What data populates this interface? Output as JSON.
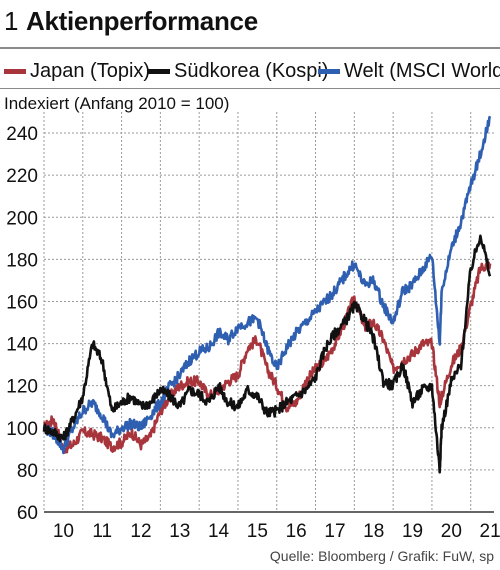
{
  "header": {
    "figure_number": "1",
    "title": "Aktienperformance"
  },
  "legend": [
    {
      "label": "Japan (Topix)",
      "color": "#a8343c"
    },
    {
      "label": "Südkorea (Kospi)",
      "color": "#111111"
    },
    {
      "label": "Welt (MSCI World)",
      "color": "#2f5fb0"
    }
  ],
  "subtitle": "Indexiert (Anfang 2010 = 100)",
  "source": "Quelle: Bloomberg / Grafik: FuW, sp",
  "chart_data": {
    "type": "line",
    "title": "Aktienperformance",
    "ylabel": "Indexiert (Anfang 2010 = 100)",
    "xlabel": "",
    "ylim": [
      60,
      250
    ],
    "yticks": [
      60,
      80,
      100,
      120,
      140,
      160,
      180,
      200,
      220,
      240
    ],
    "xlim": [
      2010,
      2021.6
    ],
    "xtick_labels": [
      "10",
      "11",
      "12",
      "13",
      "14",
      "15",
      "16",
      "17",
      "18",
      "19",
      "20",
      "21"
    ],
    "grid": true,
    "legend_position": "top",
    "x": [
      2010.0,
      2010.25,
      2010.5,
      2010.75,
      2011.0,
      2011.25,
      2011.5,
      2011.75,
      2012.0,
      2012.25,
      2012.5,
      2012.75,
      2013.0,
      2013.25,
      2013.5,
      2013.75,
      2014.0,
      2014.25,
      2014.5,
      2014.75,
      2015.0,
      2015.25,
      2015.5,
      2015.75,
      2016.0,
      2016.25,
      2016.5,
      2016.75,
      2017.0,
      2017.25,
      2017.5,
      2017.75,
      2018.0,
      2018.25,
      2018.5,
      2018.75,
      2019.0,
      2019.25,
      2019.5,
      2019.75,
      2020.0,
      2020.2,
      2020.25,
      2020.5,
      2020.75,
      2021.0,
      2021.25,
      2021.5
    ],
    "series": [
      {
        "name": "Japan (Topix)",
        "color": "#a8343c",
        "values": [
          100,
          104,
          90,
          92,
          98,
          97,
          95,
          91,
          93,
          98,
          92,
          96,
          108,
          115,
          120,
          122,
          122,
          115,
          118,
          122,
          125,
          138,
          142,
          128,
          120,
          110,
          112,
          122,
          128,
          132,
          140,
          150,
          162,
          148,
          150,
          142,
          128,
          132,
          135,
          140,
          140,
          112,
          115,
          130,
          138,
          158,
          176,
          178
        ]
      },
      {
        "name": "Südkorea (Kospi)",
        "color": "#111111",
        "values": [
          100,
          98,
          95,
          104,
          115,
          140,
          132,
          108,
          112,
          115,
          110,
          112,
          118,
          115,
          110,
          118,
          116,
          112,
          120,
          112,
          110,
          118,
          115,
          107,
          108,
          112,
          115,
          118,
          124,
          138,
          145,
          150,
          158,
          152,
          142,
          122,
          120,
          130,
          112,
          118,
          120,
          80,
          100,
          122,
          130,
          175,
          192,
          172
        ]
      },
      {
        "name": "Welt (MSCI World)",
        "color": "#2f5fb0",
        "values": [
          100,
          97,
          90,
          100,
          108,
          112,
          106,
          96,
          100,
          102,
          100,
          106,
          112,
          120,
          125,
          132,
          136,
          138,
          145,
          142,
          148,
          150,
          152,
          138,
          128,
          138,
          145,
          150,
          155,
          160,
          165,
          172,
          178,
          168,
          170,
          158,
          150,
          165,
          168,
          175,
          182,
          140,
          165,
          185,
          198,
          215,
          230,
          248
        ]
      }
    ]
  }
}
